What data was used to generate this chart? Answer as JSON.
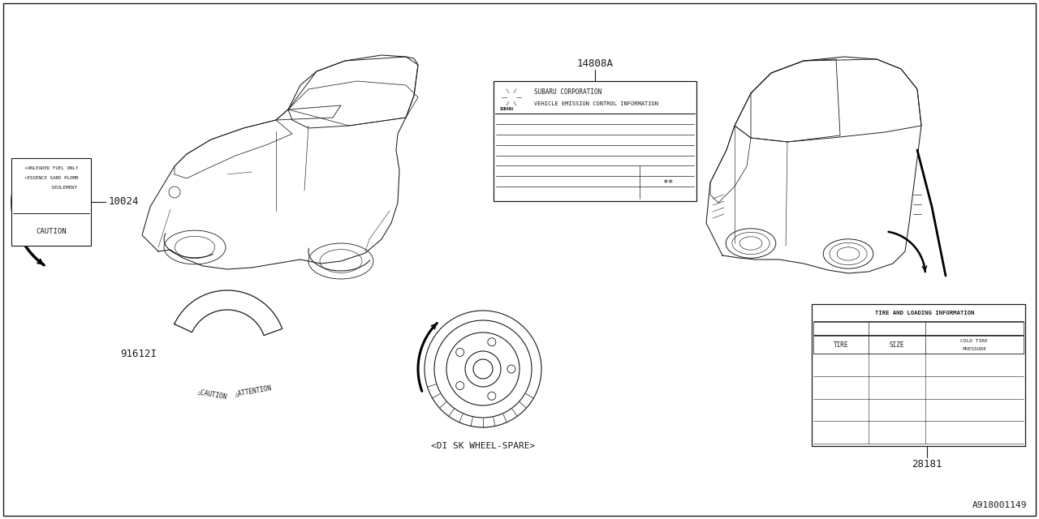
{
  "bg_color": "#ffffff",
  "line_color": "#1a1a1a",
  "part_numbers": {
    "label_10024": "10024",
    "label_14808A": "14808A",
    "label_91612I": "91612I",
    "label_28181": "28181"
  },
  "caution_label": {
    "text_line1": "•UNLEADED FUEL ONLY",
    "text_line2": "•ESSENCE SANS PLOMB",
    "text_line3": "         SEULEMENT",
    "text_caution": "CAUTION"
  },
  "emission_label": {
    "text_line1": "SUBARU CORPORATION",
    "text_line2": "VEHICLE EMISSION CONTROL INFORMATION"
  },
  "tire_label": {
    "title": "TIRE AND LOADING INFORMATION",
    "col1": "TIRE",
    "col2": "SIZE",
    "col3": "COLD TIRE\nPRESSURE"
  },
  "disk_wheel_text": "<DI SK WHEEL-SPARE>",
  "corner_text": "A918001149",
  "caution_strip_left": "△CAUTION",
  "caution_strip_right": "△ATTENTION"
}
